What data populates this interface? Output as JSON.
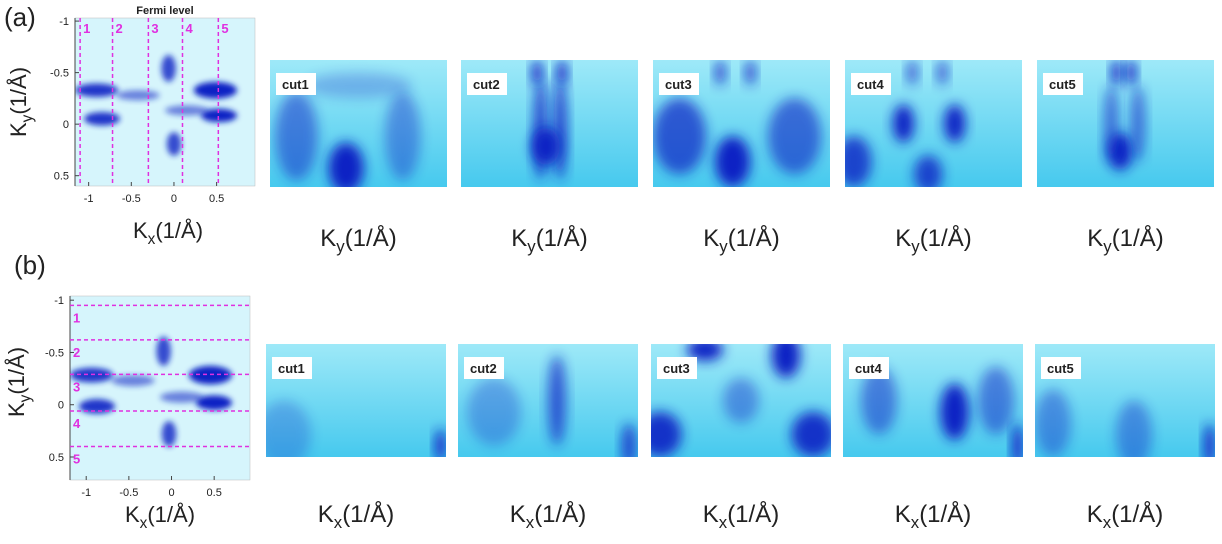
{
  "panels": [
    {
      "label": "(a)",
      "map": {
        "title": "Fermi level",
        "xlabel": [
          "K",
          "x",
          "(1/Å)"
        ],
        "ylabel": [
          "K",
          "y",
          "(1/Å)"
        ],
        "xlim": [
          -1.16,
          0.95
        ],
        "ylim": [
          -1.03,
          0.6
        ],
        "xticks": [
          -1,
          -0.5,
          0,
          0.5
        ],
        "yticks": [
          -1,
          -0.5,
          0,
          0.5
        ],
        "cut_orientation": "vertical",
        "cut_color": "#e030e0",
        "cuts": [
          {
            "label": "1",
            "position": -1.1
          },
          {
            "label": "2",
            "position": -0.72
          },
          {
            "label": "3",
            "position": -0.3
          },
          {
            "label": "4",
            "position": 0.1
          },
          {
            "label": "5",
            "position": 0.52
          }
        ]
      },
      "cuts": [
        {
          "label": "cut1",
          "axis_label": [
            "K",
            "y",
            "(1/Å)"
          ]
        },
        {
          "label": "cut2",
          "axis_label": [
            "K",
            "y",
            "(1/Å)"
          ]
        },
        {
          "label": "cut3",
          "axis_label": [
            "K",
            "y",
            "(1/Å)"
          ]
        },
        {
          "label": "cut4",
          "axis_label": [
            "K",
            "y",
            "(1/Å)"
          ]
        },
        {
          "label": "cut5",
          "axis_label": [
            "K",
            "y",
            "(1/Å)"
          ]
        }
      ]
    },
    {
      "label": "(b)",
      "map": {
        "xlabel": [
          "K",
          "x",
          "(1/Å)"
        ],
        "ylabel": [
          "K",
          "y",
          "(1/Å)"
        ],
        "xlim": [
          -1.19,
          0.92
        ],
        "ylim": [
          -1.04,
          0.72
        ],
        "xticks": [
          -1,
          -0.5,
          0,
          0.5
        ],
        "yticks": [
          -1,
          -0.5,
          0,
          0.5
        ],
        "cut_orientation": "horizontal",
        "cut_color": "#e030e0",
        "cuts": [
          {
            "label": "1",
            "position": -0.95
          },
          {
            "label": "2",
            "position": -0.62
          },
          {
            "label": "3",
            "position": -0.29
          },
          {
            "label": "4",
            "position": 0.06
          },
          {
            "label": "5",
            "position": 0.4
          }
        ]
      },
      "cuts": [
        {
          "label": "cut1",
          "axis_label": [
            "K",
            "x",
            "(1/Å)"
          ]
        },
        {
          "label": "cut2",
          "axis_label": [
            "K",
            "x",
            "(1/Å)"
          ]
        },
        {
          "label": "cut3",
          "axis_label": [
            "K",
            "x",
            "(1/Å)"
          ]
        },
        {
          "label": "cut4",
          "axis_label": [
            "K",
            "x",
            "(1/Å)"
          ]
        },
        {
          "label": "cut5",
          "axis_label": [
            "K",
            "x",
            "(1/Å)"
          ]
        }
      ]
    }
  ]
}
